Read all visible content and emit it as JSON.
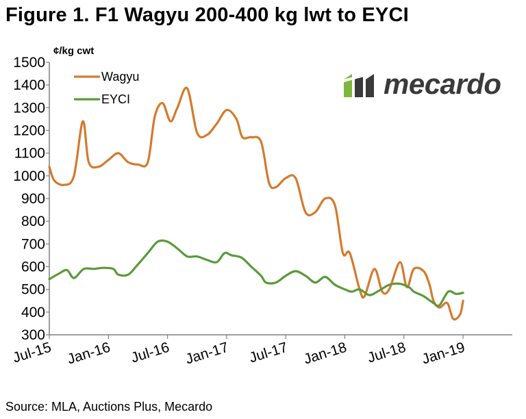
{
  "figure_title": "Figure 1. F1 Wagyu 200-400 kg lwt to EYCI",
  "unit_label": "¢/kg cwt",
  "source": "Source: MLA, Auctions Plus, Mecardo",
  "logo_text": "mecardo",
  "colors": {
    "wagyu": "#D47A2C",
    "eyci": "#5A9A3A",
    "axis": "#7f7f7f",
    "logo_green": "#7DB73F",
    "logo_dark": "#3a3a3a"
  },
  "chart_data": {
    "type": "line",
    "ylim": [
      300,
      1500
    ],
    "yticks": [
      300,
      400,
      500,
      600,
      700,
      800,
      900,
      1000,
      1100,
      1200,
      1300,
      1400,
      1500
    ],
    "xlim": [
      0,
      47
    ],
    "xticks": [
      {
        "pos": 0,
        "label": "Jul-15"
      },
      {
        "pos": 6,
        "label": "Jan-16"
      },
      {
        "pos": 12,
        "label": "Jul-16"
      },
      {
        "pos": 18,
        "label": "Jan-17"
      },
      {
        "pos": 24,
        "label": "Jul-17"
      },
      {
        "pos": 30,
        "label": "Jan-18"
      },
      {
        "pos": 36,
        "label": "Jul-18"
      },
      {
        "pos": 42,
        "label": "Jan-19"
      }
    ],
    "legend_position": "top-left",
    "series": [
      {
        "name": "Wagyu",
        "color": "#D47A2C",
        "points": [
          [
            0,
            1040
          ],
          [
            0.5,
            980
          ],
          [
            1.5,
            960
          ],
          [
            2.5,
            1000
          ],
          [
            3.4,
            1240
          ],
          [
            4,
            1060
          ],
          [
            5,
            1040
          ],
          [
            6,
            1070
          ],
          [
            7,
            1100
          ],
          [
            8,
            1060
          ],
          [
            9,
            1050
          ],
          [
            10,
            1060
          ],
          [
            10.7,
            1260
          ],
          [
            11.5,
            1320
          ],
          [
            12.3,
            1240
          ],
          [
            13,
            1300
          ],
          [
            14,
            1385
          ],
          [
            15,
            1190
          ],
          [
            16,
            1180
          ],
          [
            17,
            1230
          ],
          [
            18,
            1290
          ],
          [
            19,
            1250
          ],
          [
            19.6,
            1170
          ],
          [
            20.5,
            1170
          ],
          [
            21.5,
            1150
          ],
          [
            22.3,
            970
          ],
          [
            23,
            950
          ],
          [
            24,
            990
          ],
          [
            25,
            990
          ],
          [
            26,
            840
          ],
          [
            27,
            840
          ],
          [
            28,
            900
          ],
          [
            29,
            870
          ],
          [
            29.8,
            660
          ],
          [
            30.5,
            660
          ],
          [
            31.5,
            500
          ],
          [
            32,
            470
          ],
          [
            33,
            590
          ],
          [
            33.8,
            490
          ],
          [
            34.5,
            500
          ],
          [
            35.6,
            620
          ],
          [
            36.3,
            510
          ],
          [
            37,
            590
          ],
          [
            38,
            580
          ],
          [
            38.6,
            520
          ],
          [
            39,
            450
          ],
          [
            39.6,
            420
          ],
          [
            40.4,
            440
          ],
          [
            41,
            370
          ],
          [
            41.7,
            390
          ],
          [
            42,
            450
          ]
        ]
      },
      {
        "name": "EYCI",
        "color": "#5A9A3A",
        "points": [
          [
            0,
            545
          ],
          [
            1,
            570
          ],
          [
            1.8,
            585
          ],
          [
            2.5,
            550
          ],
          [
            3.5,
            590
          ],
          [
            4.5,
            590
          ],
          [
            5.5,
            595
          ],
          [
            6.5,
            590
          ],
          [
            7,
            565
          ],
          [
            8,
            565
          ],
          [
            9,
            610
          ],
          [
            10,
            660
          ],
          [
            11,
            710
          ],
          [
            12,
            710
          ],
          [
            13,
            680
          ],
          [
            14,
            645
          ],
          [
            15,
            645
          ],
          [
            16,
            630
          ],
          [
            17,
            620
          ],
          [
            17.8,
            660
          ],
          [
            18.5,
            650
          ],
          [
            19.5,
            640
          ],
          [
            20.5,
            600
          ],
          [
            21.5,
            560
          ],
          [
            22,
            530
          ],
          [
            23,
            530
          ],
          [
            24,
            560
          ],
          [
            25,
            580
          ],
          [
            26,
            560
          ],
          [
            27,
            530
          ],
          [
            28,
            555
          ],
          [
            29,
            520
          ],
          [
            30,
            500
          ],
          [
            30.7,
            490
          ],
          [
            31.5,
            500
          ],
          [
            32.5,
            475
          ],
          [
            33.5,
            495
          ],
          [
            34.5,
            520
          ],
          [
            35.5,
            525
          ],
          [
            36.5,
            510
          ],
          [
            37,
            490
          ],
          [
            38,
            470
          ],
          [
            39,
            440
          ],
          [
            39.6,
            430
          ],
          [
            40.5,
            490
          ],
          [
            41.3,
            480
          ],
          [
            42,
            485
          ]
        ]
      }
    ]
  }
}
